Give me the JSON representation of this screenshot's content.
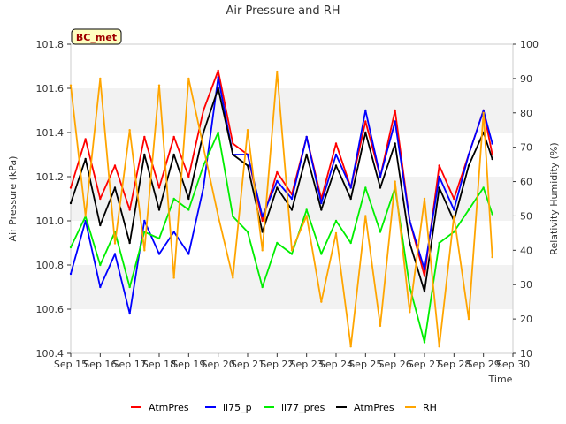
{
  "chart_data": {
    "type": "line",
    "title": "Air Pressure and RH",
    "badge": "BC_met",
    "xlabel": "Time",
    "ylabel_left": "Air Pressure (kPa)",
    "ylabel_right": "Relativity Humidity (%)",
    "x_ticks": [
      "Sep 15",
      "Sep 16",
      "Sep 17",
      "Sep 18",
      "Sep 19",
      "Sep 20",
      "Sep 21",
      "Sep 22",
      "Sep 23",
      "Sep 24",
      "Sep 25",
      "Sep 26",
      "Sep 27",
      "Sep 28",
      "Sep 29",
      "Sep 30"
    ],
    "xlim": [
      0,
      15
    ],
    "ylim_left": [
      100.4,
      101.8
    ],
    "yticks_left": [
      "100.4",
      "100.6",
      "100.8",
      "101.0",
      "101.2",
      "101.4",
      "101.6",
      "101.8"
    ],
    "ylim_right": [
      10,
      100
    ],
    "yticks_right": [
      "10",
      "20",
      "30",
      "40",
      "50",
      "60",
      "70",
      "80",
      "90",
      "100"
    ],
    "grid": "horizontal bands",
    "legend_position": "bottom",
    "x": [
      0,
      0.5,
      1,
      1.5,
      2,
      2.5,
      3,
      3.5,
      4,
      4.5,
      5,
      5.5,
      6,
      6.5,
      7,
      7.5,
      8,
      8.5,
      9,
      9.5,
      10,
      10.5,
      11,
      11.5,
      12,
      12.5,
      13,
      13.5,
      14,
      14.3
    ],
    "series": [
      {
        "name": "AtmPres",
        "color": "#ff0000",
        "axis": "left",
        "values": [
          101.15,
          101.37,
          101.1,
          101.25,
          101.05,
          101.38,
          101.15,
          101.38,
          101.2,
          101.5,
          101.68,
          101.35,
          101.3,
          101.0,
          101.22,
          101.12,
          101.38,
          101.1,
          101.35,
          101.15,
          101.45,
          101.2,
          101.5,
          101.0,
          100.75,
          101.25,
          101.1,
          101.3,
          101.5,
          101.3
        ]
      },
      {
        "name": "li75_p",
        "color": "#0000ff",
        "axis": "left",
        "values": [
          100.76,
          101.0,
          100.7,
          100.85,
          100.58,
          101.0,
          100.85,
          100.95,
          100.85,
          101.15,
          101.65,
          101.3,
          101.3,
          101.02,
          101.18,
          101.1,
          101.38,
          101.08,
          101.3,
          101.15,
          101.5,
          101.2,
          101.45,
          101.0,
          100.78,
          101.2,
          101.05,
          101.3,
          101.5,
          101.35
        ]
      },
      {
        "name": "li77_pres",
        "color": "#00ee00",
        "axis": "left",
        "values": [
          100.88,
          101.02,
          100.8,
          100.95,
          100.7,
          100.95,
          100.92,
          101.1,
          101.05,
          101.25,
          101.4,
          101.02,
          100.95,
          100.7,
          100.9,
          100.85,
          101.05,
          100.85,
          101.0,
          100.9,
          101.15,
          100.95,
          101.15,
          100.7,
          100.45,
          100.9,
          100.95,
          101.05,
          101.15,
          101.03
        ]
      },
      {
        "name": "AtmPres",
        "color": "#000000",
        "axis": "left",
        "values": [
          101.08,
          101.28,
          100.98,
          101.15,
          100.9,
          101.3,
          101.05,
          101.3,
          101.1,
          101.4,
          101.6,
          101.3,
          101.25,
          100.95,
          101.15,
          101.05,
          101.3,
          101.05,
          101.25,
          101.1,
          101.4,
          101.15,
          101.35,
          100.9,
          100.68,
          101.15,
          101.0,
          101.25,
          101.4,
          101.28
        ]
      },
      {
        "name": "RH",
        "color": "#ffa500",
        "axis": "right",
        "values": [
          88,
          50,
          90,
          42,
          75,
          40,
          88,
          32,
          90,
          70,
          50,
          32,
          75,
          40,
          92,
          40,
          50,
          25,
          45,
          12,
          50,
          18,
          60,
          22,
          55,
          12,
          50,
          20,
          80,
          38
        ]
      }
    ]
  }
}
